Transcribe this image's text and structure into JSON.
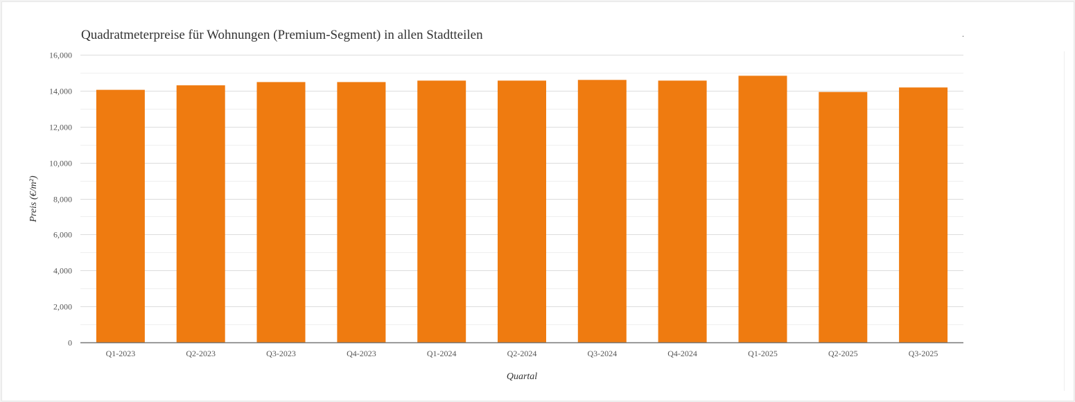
{
  "chart_data": {
    "type": "bar",
    "title": "Quadratmeterpreise für Wohnungen (Premium-Segment) in allen Stadtteilen",
    "xlabel": "Quartal",
    "ylabel": "Preis (€/m²)",
    "categories": [
      "Q1-2023",
      "Q2-2023",
      "Q3-2023",
      "Q4-2023",
      "Q1-2024",
      "Q2-2024",
      "Q3-2024",
      "Q4-2024",
      "Q1-2025",
      "Q2-2025",
      "Q3-2025"
    ],
    "values": [
      14050,
      14300,
      14480,
      14480,
      14560,
      14560,
      14600,
      14560,
      14830,
      13930,
      14180
    ],
    "ylim": [
      0,
      16000
    ],
    "yticks": [
      0,
      2000,
      4000,
      6000,
      8000,
      10000,
      12000,
      14000,
      16000
    ],
    "ytick_labels": [
      "0",
      "2,000",
      "4,000",
      "6,000",
      "8,000",
      "10,000",
      "12,000",
      "14,000",
      "16,000"
    ],
    "bar_color": "#ef7b10",
    "grid": true,
    "legend": "none"
  },
  "corner_mark": "."
}
